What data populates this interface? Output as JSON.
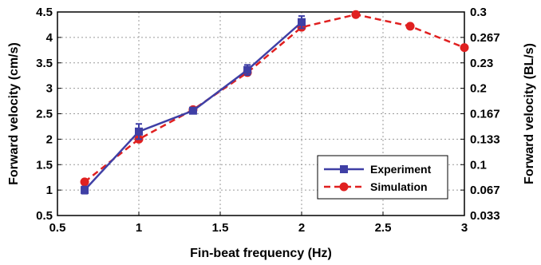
{
  "chart_data": {
    "type": "line",
    "xlabel": "Fin-beat frequency (Hz)",
    "ylabel_left": "Forward velocity (cm/s)",
    "ylabel_right": "Forward velocity (BL/s)",
    "xlim": [
      0.5,
      3
    ],
    "ylim_left": [
      0.5,
      4.5
    ],
    "ylim_right": [
      0.033,
      0.3
    ],
    "x_ticks": [
      "0.5",
      "1",
      "1.5",
      "2",
      "2.5",
      "3"
    ],
    "x_tick_values": [
      0.5,
      1,
      1.5,
      2,
      2.5,
      3
    ],
    "y_left_ticks": [
      "0.5",
      "1",
      "1.5",
      "2",
      "2.5",
      "3",
      "3.5",
      "4",
      "4.5"
    ],
    "y_left_tick_values": [
      0.5,
      1,
      1.5,
      2,
      2.5,
      3,
      3.5,
      4,
      4.5
    ],
    "y_right_ticks": [
      "0.3",
      "0.267",
      "0.23",
      "0.2",
      "0.167",
      "0.133",
      "0.1",
      "0.067",
      "0.033"
    ],
    "y_right_tick_values": [
      4.5,
      4,
      3.5,
      3,
      2.5,
      2,
      1.5,
      1,
      0.5
    ],
    "grid": true,
    "legend_position": "lower-right",
    "series": [
      {
        "name": "Experiment",
        "color": "#3f3fa5",
        "marker": "square",
        "line": "solid",
        "x": [
          0.667,
          1,
          1.333,
          1.667,
          2
        ],
        "y": [
          1.0,
          2.15,
          2.56,
          3.36,
          4.3
        ],
        "error": [
          0.07,
          0.15,
          0.05,
          0.1,
          0.12
        ]
      },
      {
        "name": "Simulation",
        "color": "#e02020",
        "marker": "circle",
        "line": "dashed",
        "x": [
          0.667,
          1,
          1.333,
          1.667,
          2,
          2.333,
          2.667,
          3
        ],
        "y": [
          1.16,
          2.0,
          2.58,
          3.31,
          4.2,
          4.45,
          4.22,
          3.8
        ]
      }
    ]
  }
}
